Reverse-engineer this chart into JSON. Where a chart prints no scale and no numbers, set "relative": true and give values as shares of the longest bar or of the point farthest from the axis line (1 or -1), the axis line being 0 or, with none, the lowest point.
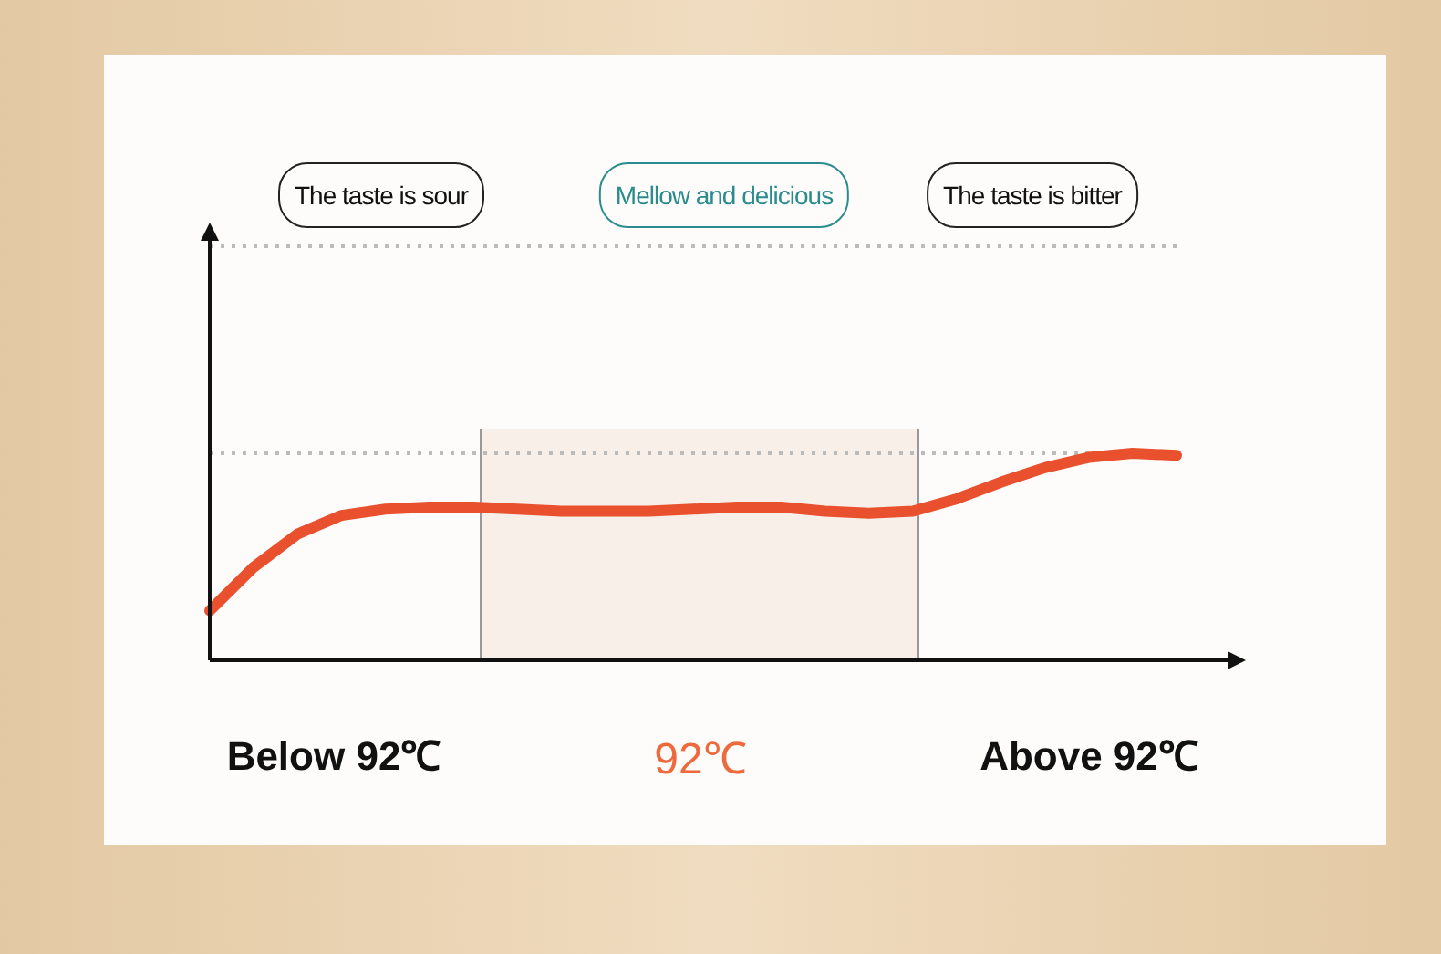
{
  "chart_data": {
    "type": "line",
    "relative": true,
    "grid": "y",
    "legend": false,
    "marker": "none",
    "line_style": "solid",
    "categories": [
      null,
      null,
      null,
      null,
      null,
      null,
      null,
      null,
      null,
      null,
      null,
      null,
      null,
      null,
      null,
      null,
      null,
      null,
      null,
      null,
      null,
      null,
      null
    ],
    "series": [
      {
        "values": [
          0.24,
          0.45,
          0.61,
          0.7,
          0.73,
          0.74,
          0.74,
          0.73,
          0.72,
          0.72,
          0.72,
          0.73,
          0.74,
          0.74,
          0.72,
          0.71,
          0.72,
          0.78,
          0.86,
          0.93,
          0.98,
          1,
          0.99
        ],
        "color": "#e8502e"
      }
    ],
    "annotations": [
      "The taste is sour",
      "Mellow and delicious",
      "The taste is bitter",
      "Below 92℃",
      "92℃",
      "Above 92℃"
    ]
  }
}
